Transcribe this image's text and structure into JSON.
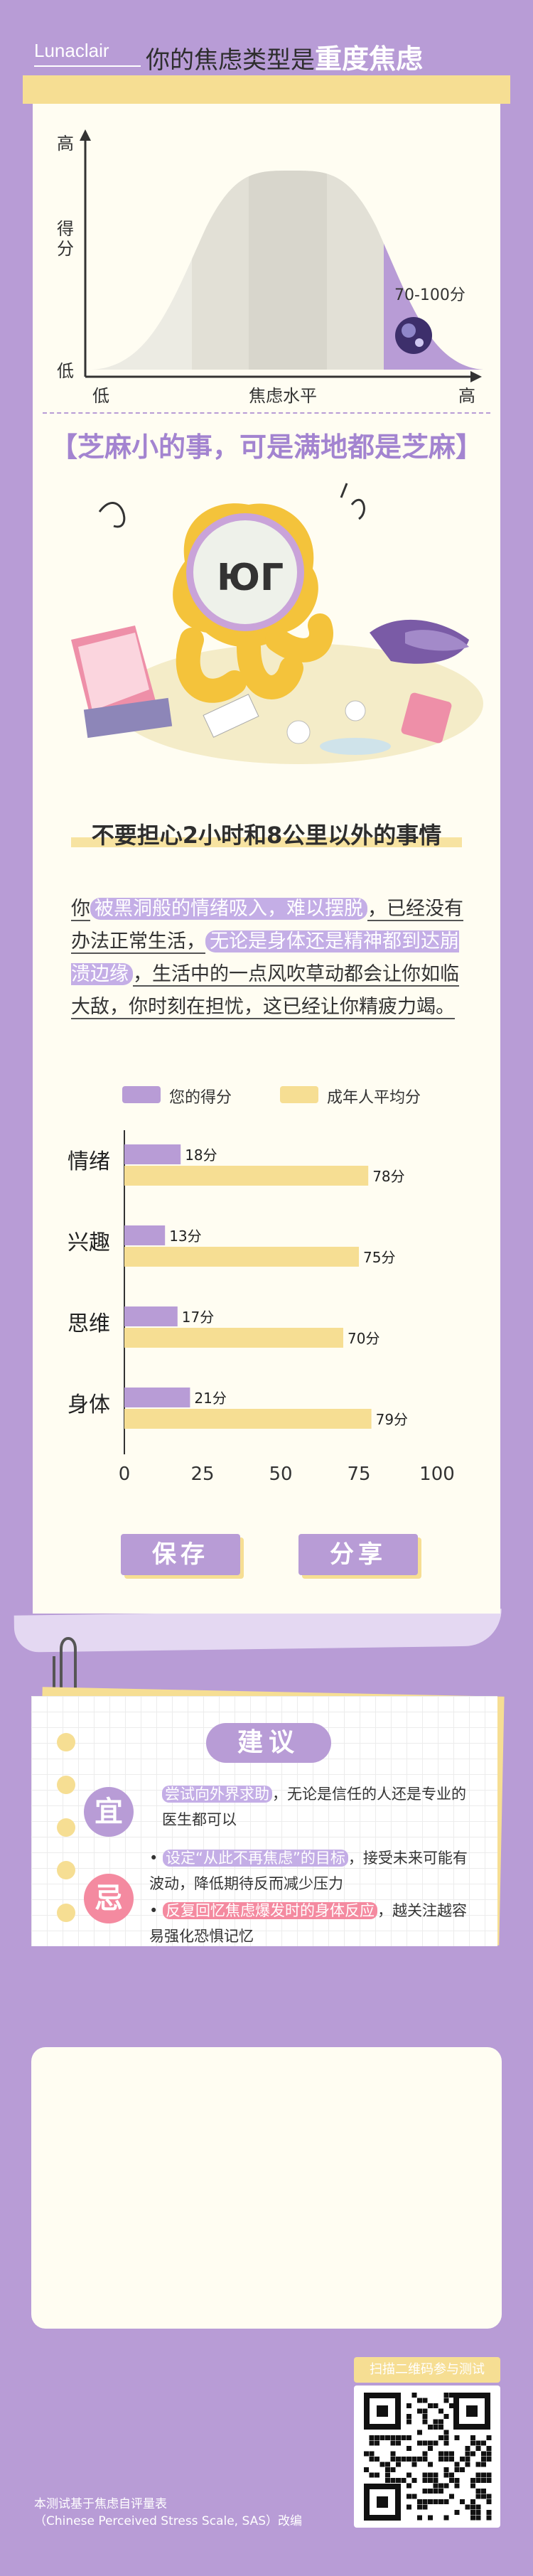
{
  "header": {
    "brand": "Lunaclair",
    "title_prefix": "你的焦虑类型是",
    "title_result": "重度焦虑"
  },
  "distribution": {
    "y_high": "高",
    "y_score_1": "得",
    "y_score_2": "分",
    "y_low": "低",
    "x_low": "低",
    "x_label": "焦虑水平",
    "x_high": "高",
    "range_label": "70-100分"
  },
  "tagline": "【芝麻小的事，可是满地都是芝麻】",
  "subtitle": "不要担心2小时和8公里以外的事情",
  "paragraph": {
    "p1": "你",
    "p2": "被黑洞般的情绪吸入，难以摆脱",
    "p3": "，已经没有办法正常生活，",
    "p4": "无论是身体还是精神都到达崩溃边缘",
    "p5": "，生活中的一点风吹草动都会让你如临大敌，你时刻在担忧，这已经让你精疲力竭。"
  },
  "chart_data": {
    "type": "bar",
    "orientation": "horizontal",
    "categories": [
      "情绪",
      "兴趣",
      "思维",
      "身体"
    ],
    "series": [
      {
        "name": "您的得分",
        "values": [
          18,
          13,
          17,
          21
        ],
        "labels": [
          "18分",
          "13分",
          "17分",
          "21分"
        ],
        "color": "#b89cd6"
      },
      {
        "name": "成年人平均分",
        "values": [
          78,
          75,
          70,
          79
        ],
        "labels": [
          "78分",
          "75分",
          "70分",
          "79分"
        ],
        "color": "#f6de93"
      }
    ],
    "xlim": [
      0,
      100
    ],
    "xticks": [
      "0",
      "25",
      "50",
      "75",
      "100"
    ],
    "legend": "top"
  },
  "buttons": {
    "save": "保存",
    "share": "分享"
  },
  "suggestion": {
    "title": "建议",
    "do_badge": "宜",
    "do_hl": "尝试向外界求助",
    "do_text": "，无论是信任的人还是专业的医生都可以",
    "dont_badge": "忌",
    "dont1_hl": "设定“从此不再焦虑”的目标",
    "dont1_text": "，接受未来可能有波动，降低期待反而减少压力",
    "dont2_hl": "反复回忆焦虑爆发时的身体反应",
    "dont2_text": "，越关注越容易强化恐惧记忆"
  },
  "qr": {
    "label": "扫描二维码参与测试"
  },
  "footer": {
    "line1": "本测试基于焦虑自评量表",
    "line2": "（Chinese Perceived Stress Scale, SAS）改编"
  },
  "colors": {
    "purple": "#b89cd6",
    "yellow": "#f6de93",
    "paper": "#fffdf2",
    "pink": "#f48aa0"
  }
}
